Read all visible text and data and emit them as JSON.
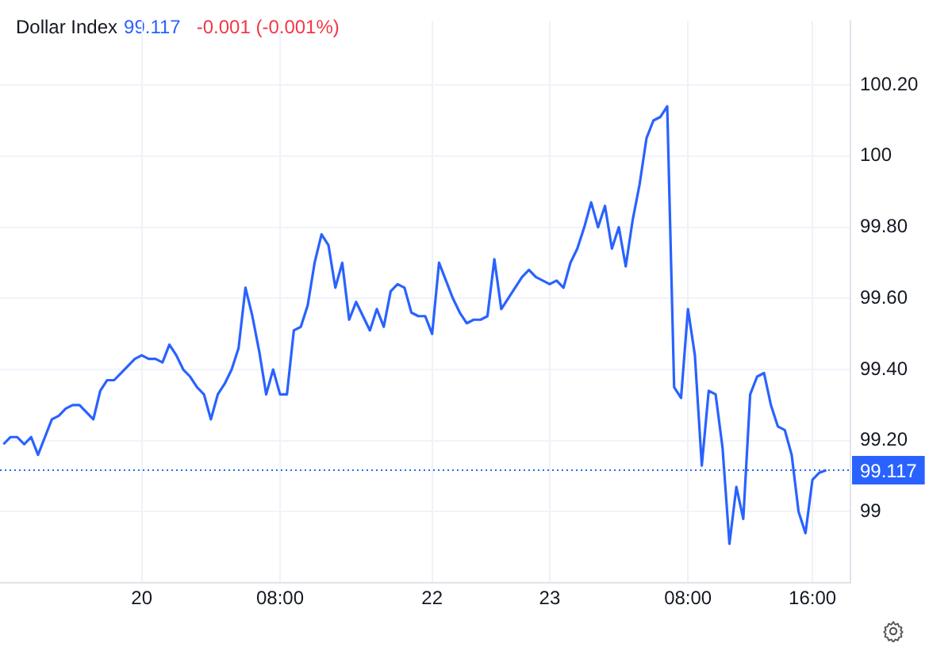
{
  "chart_data": {
    "type": "line",
    "title": "Dollar Index",
    "annotations": [
      "99.117",
      "-0.001 (-0.001%)"
    ],
    "categories": [
      null,
      null,
      null,
      null,
      null,
      null,
      null,
      null,
      null,
      null,
      null,
      null,
      null,
      null,
      null,
      null,
      null,
      null,
      null,
      null,
      "20",
      null,
      null,
      null,
      null,
      null,
      null,
      null,
      null,
      null,
      null,
      null,
      null,
      null,
      null,
      null,
      null,
      null,
      null,
      null,
      "08:00",
      null,
      null,
      null,
      null,
      null,
      null,
      null,
      null,
      null,
      null,
      null,
      null,
      null,
      null,
      null,
      null,
      null,
      null,
      null,
      null,
      null,
      "22",
      null,
      null,
      null,
      null,
      null,
      null,
      null,
      null,
      null,
      null,
      null,
      null,
      null,
      null,
      null,
      null,
      "23",
      null,
      null,
      null,
      null,
      null,
      null,
      null,
      null,
      null,
      null,
      null,
      null,
      null,
      null,
      null,
      null,
      null,
      null,
      null,
      "08:00",
      null,
      null,
      null,
      null,
      null,
      null,
      null,
      null,
      null,
      null,
      null,
      null,
      null,
      null,
      null,
      null,
      null,
      "16:00",
      null,
      null
    ],
    "ylim": [
      98.8,
      100.38
    ],
    "yticks": [
      {
        "value": 99,
        "label": "99"
      },
      {
        "value": 99.2,
        "label": "99.20"
      },
      {
        "value": 99.4,
        "label": "99.40"
      },
      {
        "value": 99.6,
        "label": "99.60"
      },
      {
        "value": 99.8,
        "label": "99.80"
      },
      {
        "value": 100,
        "label": "100"
      },
      {
        "value": 100.2,
        "label": "100.20"
      }
    ],
    "grid": true,
    "legend": false,
    "marker": "none",
    "line_style": "solid",
    "ref_lines": [
      {
        "axis": "y",
        "value": 99.117,
        "label": "99.117",
        "color": "#2962ff",
        "line_style": "dotted"
      }
    ],
    "series": [
      {
        "color": "#2962ff",
        "values": [
          99.19,
          99.21,
          99.21,
          99.19,
          99.21,
          99.16,
          99.21,
          99.26,
          99.27,
          99.29,
          99.3,
          99.3,
          99.28,
          99.26,
          99.34,
          99.37,
          99.37,
          99.39,
          99.41,
          99.43,
          99.44,
          99.43,
          99.43,
          99.42,
          99.47,
          99.44,
          99.4,
          99.38,
          99.35,
          99.33,
          99.26,
          99.33,
          99.36,
          99.4,
          99.46,
          99.63,
          99.55,
          99.45,
          99.33,
          99.4,
          99.33,
          99.33,
          99.51,
          99.52,
          99.58,
          99.7,
          99.78,
          99.75,
          99.63,
          99.7,
          99.54,
          99.59,
          99.55,
          99.51,
          99.57,
          99.52,
          99.62,
          99.64,
          99.63,
          99.56,
          99.55,
          99.55,
          99.5,
          99.7,
          99.65,
          99.6,
          99.56,
          99.53,
          99.54,
          99.54,
          99.55,
          99.71,
          99.57,
          99.6,
          99.63,
          99.66,
          99.68,
          99.66,
          99.65,
          99.64,
          99.65,
          99.63,
          99.7,
          99.74,
          99.8,
          99.87,
          99.8,
          99.86,
          99.74,
          99.8,
          99.69,
          99.82,
          99.92,
          100.05,
          100.1,
          100.11,
          100.14,
          99.35,
          99.32,
          99.57,
          99.44,
          99.13,
          99.34,
          99.33,
          99.18,
          98.91,
          99.07,
          98.98,
          99.33,
          99.38,
          99.39,
          99.3,
          99.24,
          99.23,
          99.16,
          99.0,
          98.94,
          99.09,
          99.11,
          99.117
        ]
      }
    ]
  }
}
